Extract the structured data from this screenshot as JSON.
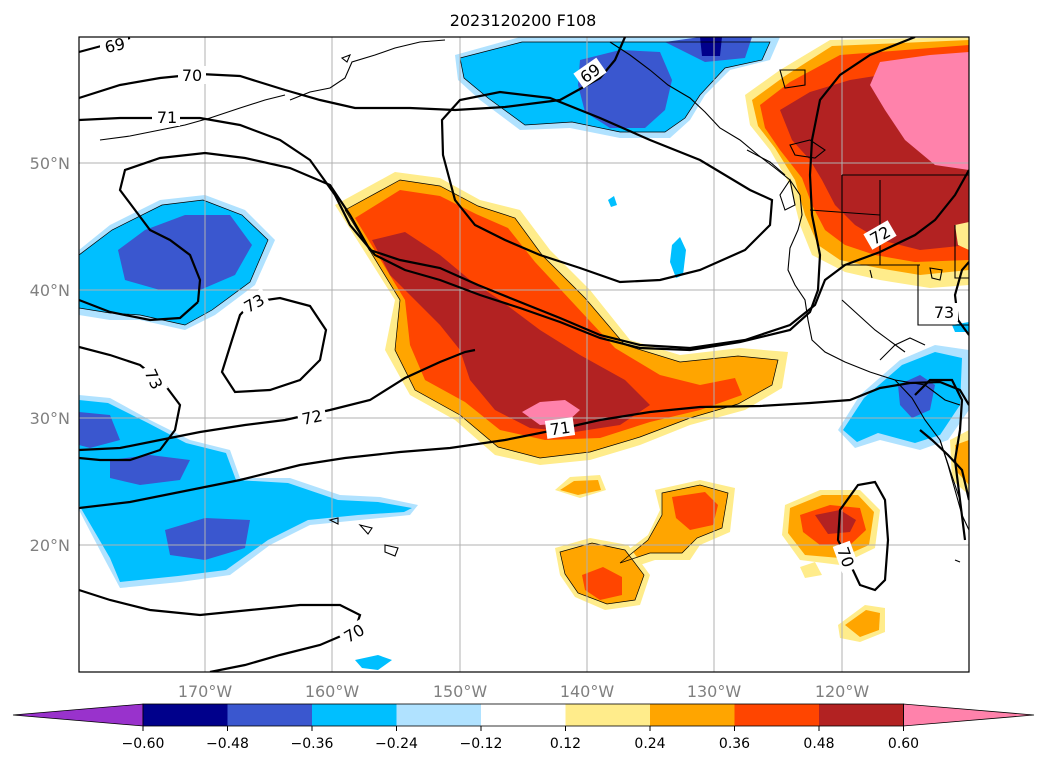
{
  "title": "2023120200 F108",
  "map": {
    "lat_labels": [
      "50°N",
      "40°N",
      "30°N",
      "20°N"
    ],
    "lon_labels": [
      "170°W",
      "160°W",
      "150°W",
      "140°W",
      "130°W",
      "120°W"
    ],
    "contour_labels": [
      "69",
      "70",
      "71",
      "69",
      "73",
      "73",
      "72",
      "71",
      "72",
      "73",
      "70",
      "70"
    ]
  },
  "colorbar": {
    "ticks": [
      "−0.60",
      "−0.48",
      "−0.36",
      "−0.24",
      "−0.12",
      "0.12",
      "0.24",
      "0.36",
      "0.48",
      "0.60"
    ],
    "colors": [
      "#9932cc",
      "#00008b",
      "#3a57cf",
      "#00bfff",
      "#b0e2ff",
      "#ffffff",
      "#ffec8b",
      "#ffa500",
      "#ff4500",
      "#b22222",
      "#ff82ab"
    ]
  },
  "legend_colors": {
    "strong_neg": "#3a57cf",
    "neg": "#00bfff",
    "weak_neg": "#b0e2ff",
    "weak_pos": "#ffec8b",
    "pos": "#ffa500",
    "mid_pos": "#ff4500",
    "strong_pos": "#b22222",
    "max_pos": "#ff82ab",
    "dark_neg": "#00008b"
  }
}
